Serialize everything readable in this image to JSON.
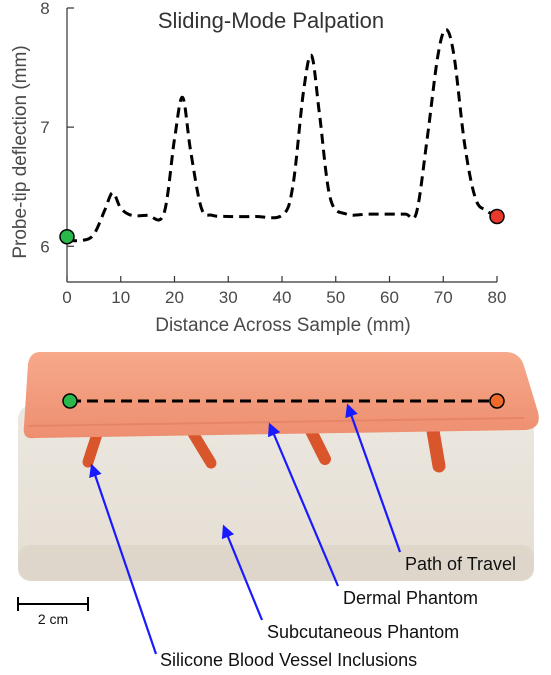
{
  "chart_data": {
    "type": "line",
    "title": "Sliding-Mode Palpation",
    "xlabel": "Distance Across Sample (mm)",
    "ylabel": "Probe-tip deflection (mm)",
    "xlim": [
      0,
      80
    ],
    "ylim": [
      5.7,
      8
    ],
    "x_ticks": [
      0,
      10,
      20,
      30,
      40,
      50,
      60,
      70,
      80
    ],
    "y_ticks": [
      6,
      7,
      8
    ],
    "grid": false,
    "line_style": "dashed",
    "line_color": "#000000",
    "series": [
      {
        "x": [
          0,
          3,
          5,
          7,
          8.5,
          10,
          12,
          15,
          18,
          20,
          21.5,
          23,
          25,
          27,
          30,
          35,
          40,
          42,
          44,
          45.5,
          47,
          49,
          52,
          56,
          60,
          63,
          65,
          67,
          69,
          70.5,
          72,
          74,
          76,
          78,
          80
        ],
        "y": [
          6.05,
          6.05,
          6.1,
          6.3,
          6.45,
          6.32,
          6.26,
          6.26,
          6.27,
          6.9,
          7.25,
          6.8,
          6.32,
          6.26,
          6.25,
          6.25,
          6.26,
          6.5,
          7.3,
          7.6,
          7.1,
          6.4,
          6.27,
          6.27,
          6.27,
          6.27,
          6.28,
          6.9,
          7.6,
          7.82,
          7.6,
          6.85,
          6.4,
          6.3,
          6.25
        ]
      }
    ],
    "markers": [
      {
        "x": 0,
        "y": 6.08,
        "color": "#2bb84a"
      },
      {
        "x": 80,
        "y": 6.25,
        "color": "#e8392b"
      }
    ]
  },
  "photo": {
    "annotations": [
      "Path of Travel",
      "Dermal Phantom",
      "Subcutaneous Phantom",
      "Silicone Blood Vessel Inclusions"
    ],
    "scale_bar": "2 cm",
    "arrow_color": "#1a1aff",
    "start_marker_color": "#2bb84a",
    "end_marker_color": "#f06a2a"
  }
}
